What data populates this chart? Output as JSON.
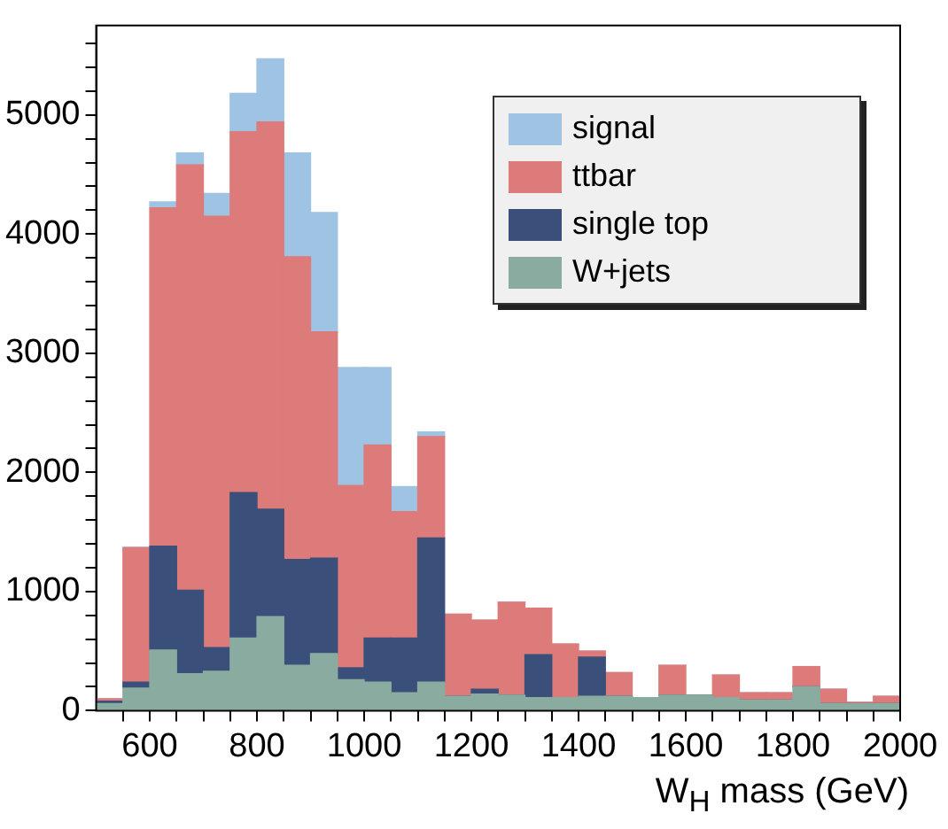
{
  "chart_data": {
    "type": "bar",
    "xlabel": "W$_{H}$ mass (GeV)",
    "stacked": true,
    "legend": "top right",
    "grid": false,
    "x": [
      525,
      575,
      625,
      675,
      725,
      775,
      825,
      875,
      925,
      975,
      1025,
      1075,
      1125,
      1175,
      1225,
      1275,
      1325,
      1375,
      1425,
      1475,
      1525,
      1575,
      1625,
      1675,
      1725,
      1775,
      1825,
      1875,
      1925,
      1975
    ],
    "xlim": [
      500,
      2000
    ],
    "xticks": [
      {
        "value": 550,
        "label": null
      },
      600,
      {
        "value": 650,
        "label": null
      },
      {
        "value": 700,
        "label": null
      },
      {
        "value": 750,
        "label": null
      },
      800,
      {
        "value": 850,
        "label": null
      },
      {
        "value": 900,
        "label": null
      },
      {
        "value": 950,
        "label": null
      },
      1000,
      {
        "value": 1050,
        "label": null
      },
      {
        "value": 1100,
        "label": null
      },
      {
        "value": 1150,
        "label": null
      },
      1200,
      {
        "value": 1250,
        "label": null
      },
      {
        "value": 1300,
        "label": null
      },
      {
        "value": 1350,
        "label": null
      },
      1400,
      {
        "value": 1450,
        "label": null
      },
      {
        "value": 1500,
        "label": null
      },
      {
        "value": 1550,
        "label": null
      },
      1600,
      {
        "value": 1650,
        "label": null
      },
      {
        "value": 1700,
        "label": null
      },
      {
        "value": 1750,
        "label": null
      },
      1800,
      {
        "value": 1850,
        "label": null
      },
      {
        "value": 1900,
        "label": null
      },
      {
        "value": 1950,
        "label": null
      },
      2000
    ],
    "ylim": [
      0,
      5750
    ],
    "yticks": [
      0,
      {
        "value": 200,
        "label": null
      },
      {
        "value": 400,
        "label": null
      },
      {
        "value": 600,
        "label": null
      },
      {
        "value": 800,
        "label": null
      },
      1000,
      {
        "value": 1200,
        "label": null
      },
      {
        "value": 1400,
        "label": null
      },
      {
        "value": 1600,
        "label": null
      },
      {
        "value": 1800,
        "label": null
      },
      2000,
      {
        "value": 2200,
        "label": null
      },
      {
        "value": 2400,
        "label": null
      },
      {
        "value": 2600,
        "label": null
      },
      {
        "value": 2800,
        "label": null
      },
      3000,
      {
        "value": 3200,
        "label": null
      },
      {
        "value": 3400,
        "label": null
      },
      {
        "value": 3600,
        "label": null
      },
      {
        "value": 3800,
        "label": null
      },
      4000,
      {
        "value": 4200,
        "label": null
      },
      {
        "value": 4400,
        "label": null
      },
      {
        "value": 4600,
        "label": null
      },
      {
        "value": 4800,
        "label": null
      },
      5000,
      {
        "value": 5200,
        "label": null
      },
      {
        "value": 5400,
        "label": null
      },
      {
        "value": 5600,
        "label": null
      }
    ],
    "series": [
      {
        "name": "W+jets",
        "color": "#8aaba0",
        "values": [
          60,
          190,
          510,
          310,
          330,
          610,
          790,
          380,
          480,
          260,
          240,
          150,
          240,
          120,
          140,
          130,
          110,
          110,
          120,
          120,
          110,
          130,
          130,
          110,
          90,
          90,
          200,
          60,
          60,
          60
        ]
      },
      {
        "name": "single top",
        "color": "#3a4f7a",
        "values": [
          20,
          50,
          870,
          700,
          200,
          1220,
          900,
          890,
          800,
          100,
          370,
          460,
          1210,
          0,
          40,
          0,
          360,
          0,
          330,
          0,
          0,
          0,
          0,
          0,
          0,
          0,
          0,
          0,
          0,
          0
        ]
      },
      {
        "name": "ttbar",
        "color": "#dd7a7a",
        "values": [
          20,
          1130,
          2840,
          3570,
          3620,
          3030,
          3250,
          2540,
          1900,
          1530,
          1620,
          1060,
          850,
          690,
          580,
          780,
          390,
          450,
          50,
          200,
          0,
          250,
          0,
          190,
          60,
          60,
          170,
          120,
          10,
          60
        ]
      },
      {
        "name": "signal",
        "color": "#9fc3e2",
        "values": [
          0,
          0,
          50,
          100,
          190,
          320,
          530,
          870,
          1000,
          990,
          650,
          210,
          40,
          0,
          0,
          0,
          0,
          0,
          0,
          0,
          0,
          0,
          0,
          0,
          0,
          0,
          0,
          0,
          0,
          0
        ]
      }
    ]
  }
}
